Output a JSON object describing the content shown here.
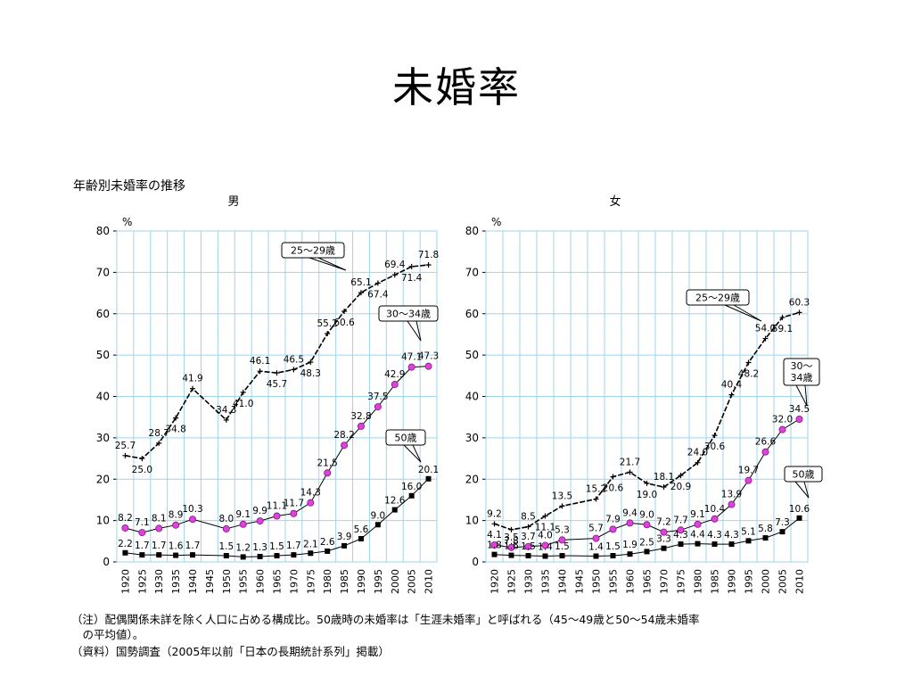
{
  "slide_title": "未婚率",
  "figure_title": "年齢別未婚率の推移",
  "notes": [
    "（注）配偶関係未詳を除く人口に占める構成比。50歳時の未婚率は「生涯未婚率」と呼ばれる（45～49歳と50～54歳未婚率",
    "　の平均値）。",
    "（資料）国勢調査（2005年以前「日本の長期統計系列」掲載）"
  ],
  "chart_data": [
    {
      "type": "line",
      "title": "男",
      "ylabel": "%",
      "ylim": [
        0,
        80
      ],
      "yticks": [
        0,
        10,
        20,
        30,
        40,
        50,
        60,
        70,
        80
      ],
      "grid": true,
      "categories": [
        "1920",
        "1925",
        "1930",
        "1935",
        "1940",
        "1945",
        "1950",
        "1955",
        "1960",
        "1965",
        "1970",
        "1975",
        "1980",
        "1985",
        "1990",
        "1995",
        "2000",
        "2005",
        "2010"
      ],
      "series": [
        {
          "name": "25～29歳",
          "marker": "plus",
          "color": "#000000",
          "values": [
            25.7,
            25.0,
            28.7,
            34.8,
            41.9,
            null,
            34.3,
            41.0,
            46.1,
            45.7,
            46.5,
            48.3,
            55.2,
            60.6,
            65.1,
            67.4,
            69.4,
            71.4,
            71.8
          ],
          "labels": [
            "25.7",
            "25.0",
            "28.7",
            "34.8",
            "41.9",
            null,
            "34.3",
            "41.0",
            "46.1",
            "45.7",
            "46.5",
            "48.3",
            "55.2",
            "60.6",
            "65.1",
            "67.4",
            "69.4",
            "71.4",
            "71.8"
          ]
        },
        {
          "name": "30～34歳",
          "marker": "circle",
          "color": "#e040e0",
          "values": [
            8.2,
            7.1,
            8.1,
            8.9,
            10.3,
            null,
            8.0,
            9.1,
            9.9,
            11.1,
            11.7,
            14.3,
            21.5,
            28.2,
            32.8,
            37.5,
            42.9,
            47.1,
            47.3
          ],
          "labels": [
            "8.2",
            "7.1",
            "8.1",
            "8.9",
            "10.3",
            null,
            "8.0",
            "9.1",
            "9.9",
            "11.1",
            "11.7",
            "14.3",
            "21.5",
            "28.2",
            "32.8",
            "37.5",
            "42.9",
            "47.1",
            "47.3"
          ]
        },
        {
          "name": "50歳",
          "marker": "square",
          "color": "#000000",
          "values": [
            2.2,
            1.7,
            1.7,
            1.6,
            1.7,
            null,
            1.5,
            1.2,
            1.3,
            1.5,
            1.7,
            2.1,
            2.6,
            3.9,
            5.6,
            9.0,
            12.6,
            16.0,
            20.1
          ],
          "labels": [
            "2.2",
            "1.7",
            "1.7",
            "1.6",
            "1.7",
            null,
            "1.5",
            "1.2",
            "1.3",
            "1.5",
            "1.7",
            "2.1",
            "2.6",
            "3.9",
            "5.6",
            "9.0",
            "12.6",
            "16.0",
            "20.1"
          ]
        }
      ]
    },
    {
      "type": "line",
      "title": "女",
      "ylabel": "%",
      "ylim": [
        0,
        80
      ],
      "yticks": [
        0,
        10,
        20,
        30,
        40,
        50,
        60,
        70,
        80
      ],
      "grid": true,
      "categories": [
        "1920",
        "1925",
        "1930",
        "1935",
        "1940",
        "1945",
        "1950",
        "1955",
        "1960",
        "1965",
        "1970",
        "1975",
        "1980",
        "1985",
        "1990",
        "1995",
        "2000",
        "2005",
        "2010"
      ],
      "series": [
        {
          "name": "25～29歳",
          "marker": "plus",
          "color": "#000000",
          "values": [
            9.2,
            7.8,
            8.5,
            11.1,
            13.5,
            null,
            15.2,
            20.6,
            21.7,
            19.0,
            18.1,
            20.9,
            24.0,
            30.6,
            40.4,
            48.2,
            54.0,
            59.1,
            60.3
          ],
          "labels": [
            "9.2",
            "7.8",
            "8.5",
            "11.1",
            "13.5",
            null,
            "15.2",
            "20.6",
            "21.7",
            "19.0",
            "18.1",
            "20.9",
            "24.0",
            "30.6",
            "40.4",
            "48.2",
            "54.0",
            "59.1",
            "60.3"
          ]
        },
        {
          "name": "30～34歳",
          "marker": "circle",
          "color": "#e040e0",
          "values": [
            4.1,
            3.5,
            3.7,
            4.0,
            5.3,
            null,
            5.7,
            7.9,
            9.4,
            9.0,
            7.2,
            7.7,
            9.1,
            10.4,
            13.9,
            19.7,
            26.6,
            32.0,
            34.5
          ],
          "labels": [
            "4.1",
            "3.5",
            "3.7",
            "4.0",
            "5.3",
            null,
            "5.7",
            "7.9",
            "9.4",
            "9.0",
            "7.2",
            "7.7",
            "9.1",
            "10.4",
            "13.9",
            "19.7",
            "26.6",
            "32.0",
            "34.5"
          ]
        },
        {
          "name": "50歳",
          "marker": "square",
          "color": "#000000",
          "values": [
            1.8,
            1.6,
            1.5,
            1.4,
            1.5,
            null,
            1.4,
            1.5,
            1.9,
            2.5,
            3.3,
            4.3,
            4.4,
            4.3,
            4.3,
            5.1,
            5.8,
            7.3,
            10.6
          ],
          "labels": [
            "1.8",
            "1.6",
            "1.5",
            "1.4",
            "1.5",
            null,
            "1.4",
            "1.5",
            "1.9",
            "2.5",
            "3.3",
            "4.3",
            "4.4",
            "4.3",
            "4.3",
            "5.1",
            "5.8",
            "7.3",
            "10.6"
          ]
        }
      ]
    }
  ],
  "colors": {
    "grid": "#9fd4e8",
    "axis": "#000000",
    "callout_border": "#000000"
  }
}
